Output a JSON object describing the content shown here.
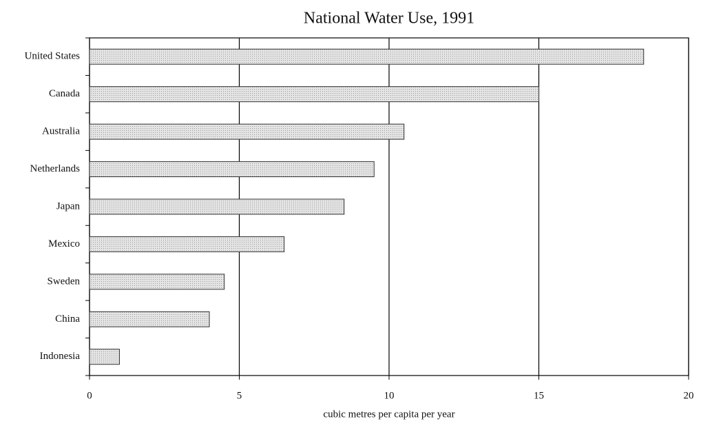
{
  "chart_data": {
    "type": "bar",
    "orientation": "horizontal",
    "title": "National Water Use, 1991",
    "x_label": "cubic metres per capita per year",
    "categories": [
      "United States",
      "Canada",
      "Australia",
      "Netherlands",
      "Japan",
      "Mexico",
      "Sweden",
      "China",
      "Indonesia"
    ],
    "values": [
      18.5,
      15,
      10.5,
      9.5,
      8.5,
      6.5,
      4.5,
      4,
      1
    ],
    "color": "#dcdcdc",
    "xlim": [
      0,
      20
    ],
    "xticks": [
      0,
      5,
      10,
      15,
      20
    ],
    "grid": true
  }
}
